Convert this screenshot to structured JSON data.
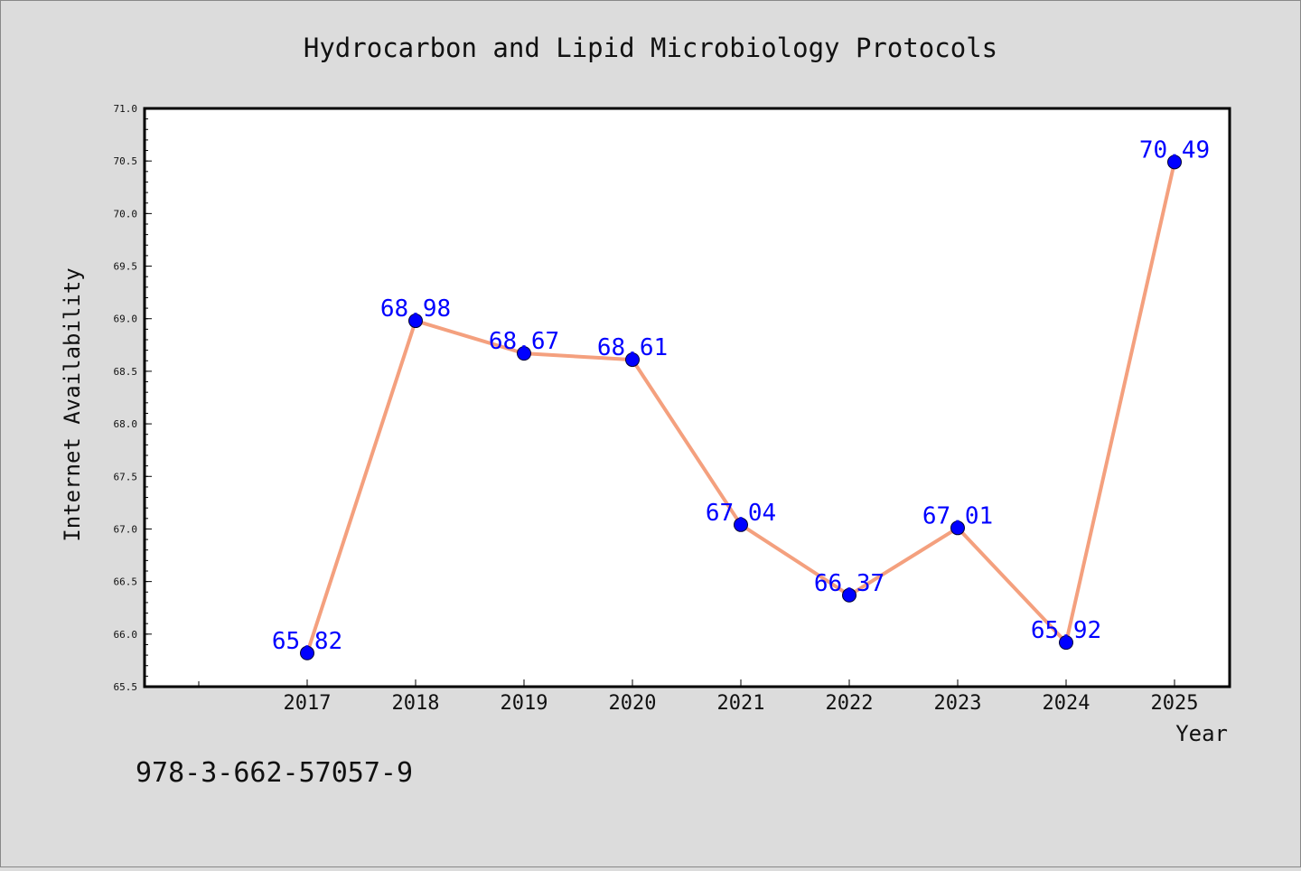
{
  "chart_data": {
    "type": "line",
    "title": "Hydrocarbon and Lipid Microbiology Protocols",
    "xlabel": "Year",
    "ylabel": "Internet Availability",
    "categories": [
      "2017",
      "2018",
      "2019",
      "2020",
      "2021",
      "2022",
      "2023",
      "2024",
      "2025"
    ],
    "series": [
      {
        "values": [
          65.82,
          68.98,
          68.67,
          68.61,
          67.04,
          66.37,
          67.01,
          65.92,
          70.49
        ],
        "labels": [
          "65.82",
          "68.98",
          "68.67",
          "68.61",
          "67.04",
          "66.37",
          "67.01",
          "65.92",
          "70.49"
        ],
        "line_color": "#f4a07e",
        "marker_color": "#0000ff",
        "label_color": "#0000ff"
      }
    ],
    "ylim": [
      65.5,
      71.0
    ],
    "yticks": [
      "65.5",
      "66.0",
      "66.5",
      "67.0",
      "67.5",
      "68.0",
      "68.5",
      "69.0",
      "69.5",
      "70.0",
      "70.5",
      "71.0"
    ],
    "grid": false,
    "background": "#dcdcdc",
    "plot_background": "#ffffff"
  },
  "footer": {
    "isbn": "978-3-662-57057-9"
  }
}
